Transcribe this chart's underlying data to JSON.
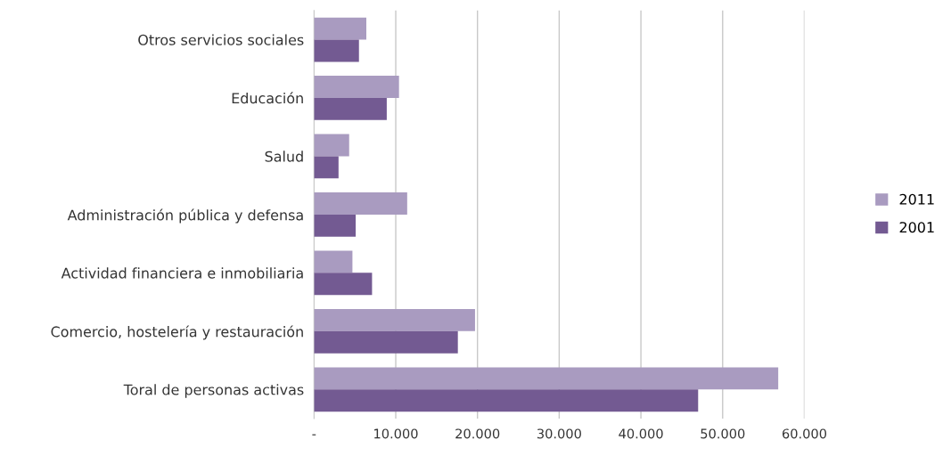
{
  "chart_data": {
    "type": "bar",
    "orientation": "horizontal",
    "categories": [
      "Otros servicios sociales",
      "Educación",
      "Salud",
      "Administración pública y defensa",
      "Actividad financiera e inmobiliaria",
      "Comercio, hostelería y restauración",
      "Toral de personas activas"
    ],
    "series": [
      {
        "name": "2011",
        "color": "#a99bc0",
        "values": [
          6400,
          10400,
          4300,
          11400,
          4700,
          19700,
          56800
        ]
      },
      {
        "name": "2001",
        "color": "#735a92",
        "values": [
          5500,
          8900,
          3000,
          5100,
          7100,
          17600,
          47000
        ]
      }
    ],
    "xlim": [
      0,
      60000
    ],
    "xticks": [
      {
        "value": 0,
        "label": "-"
      },
      {
        "value": 10000,
        "label": "10.000"
      },
      {
        "value": 20000,
        "label": "20.000"
      },
      {
        "value": 30000,
        "label": "30.000"
      },
      {
        "value": 40000,
        "label": "40.000"
      },
      {
        "value": 50000,
        "label": "50.000"
      },
      {
        "value": 60000,
        "label": "60.000"
      }
    ],
    "grid": "x",
    "legend": "right"
  }
}
